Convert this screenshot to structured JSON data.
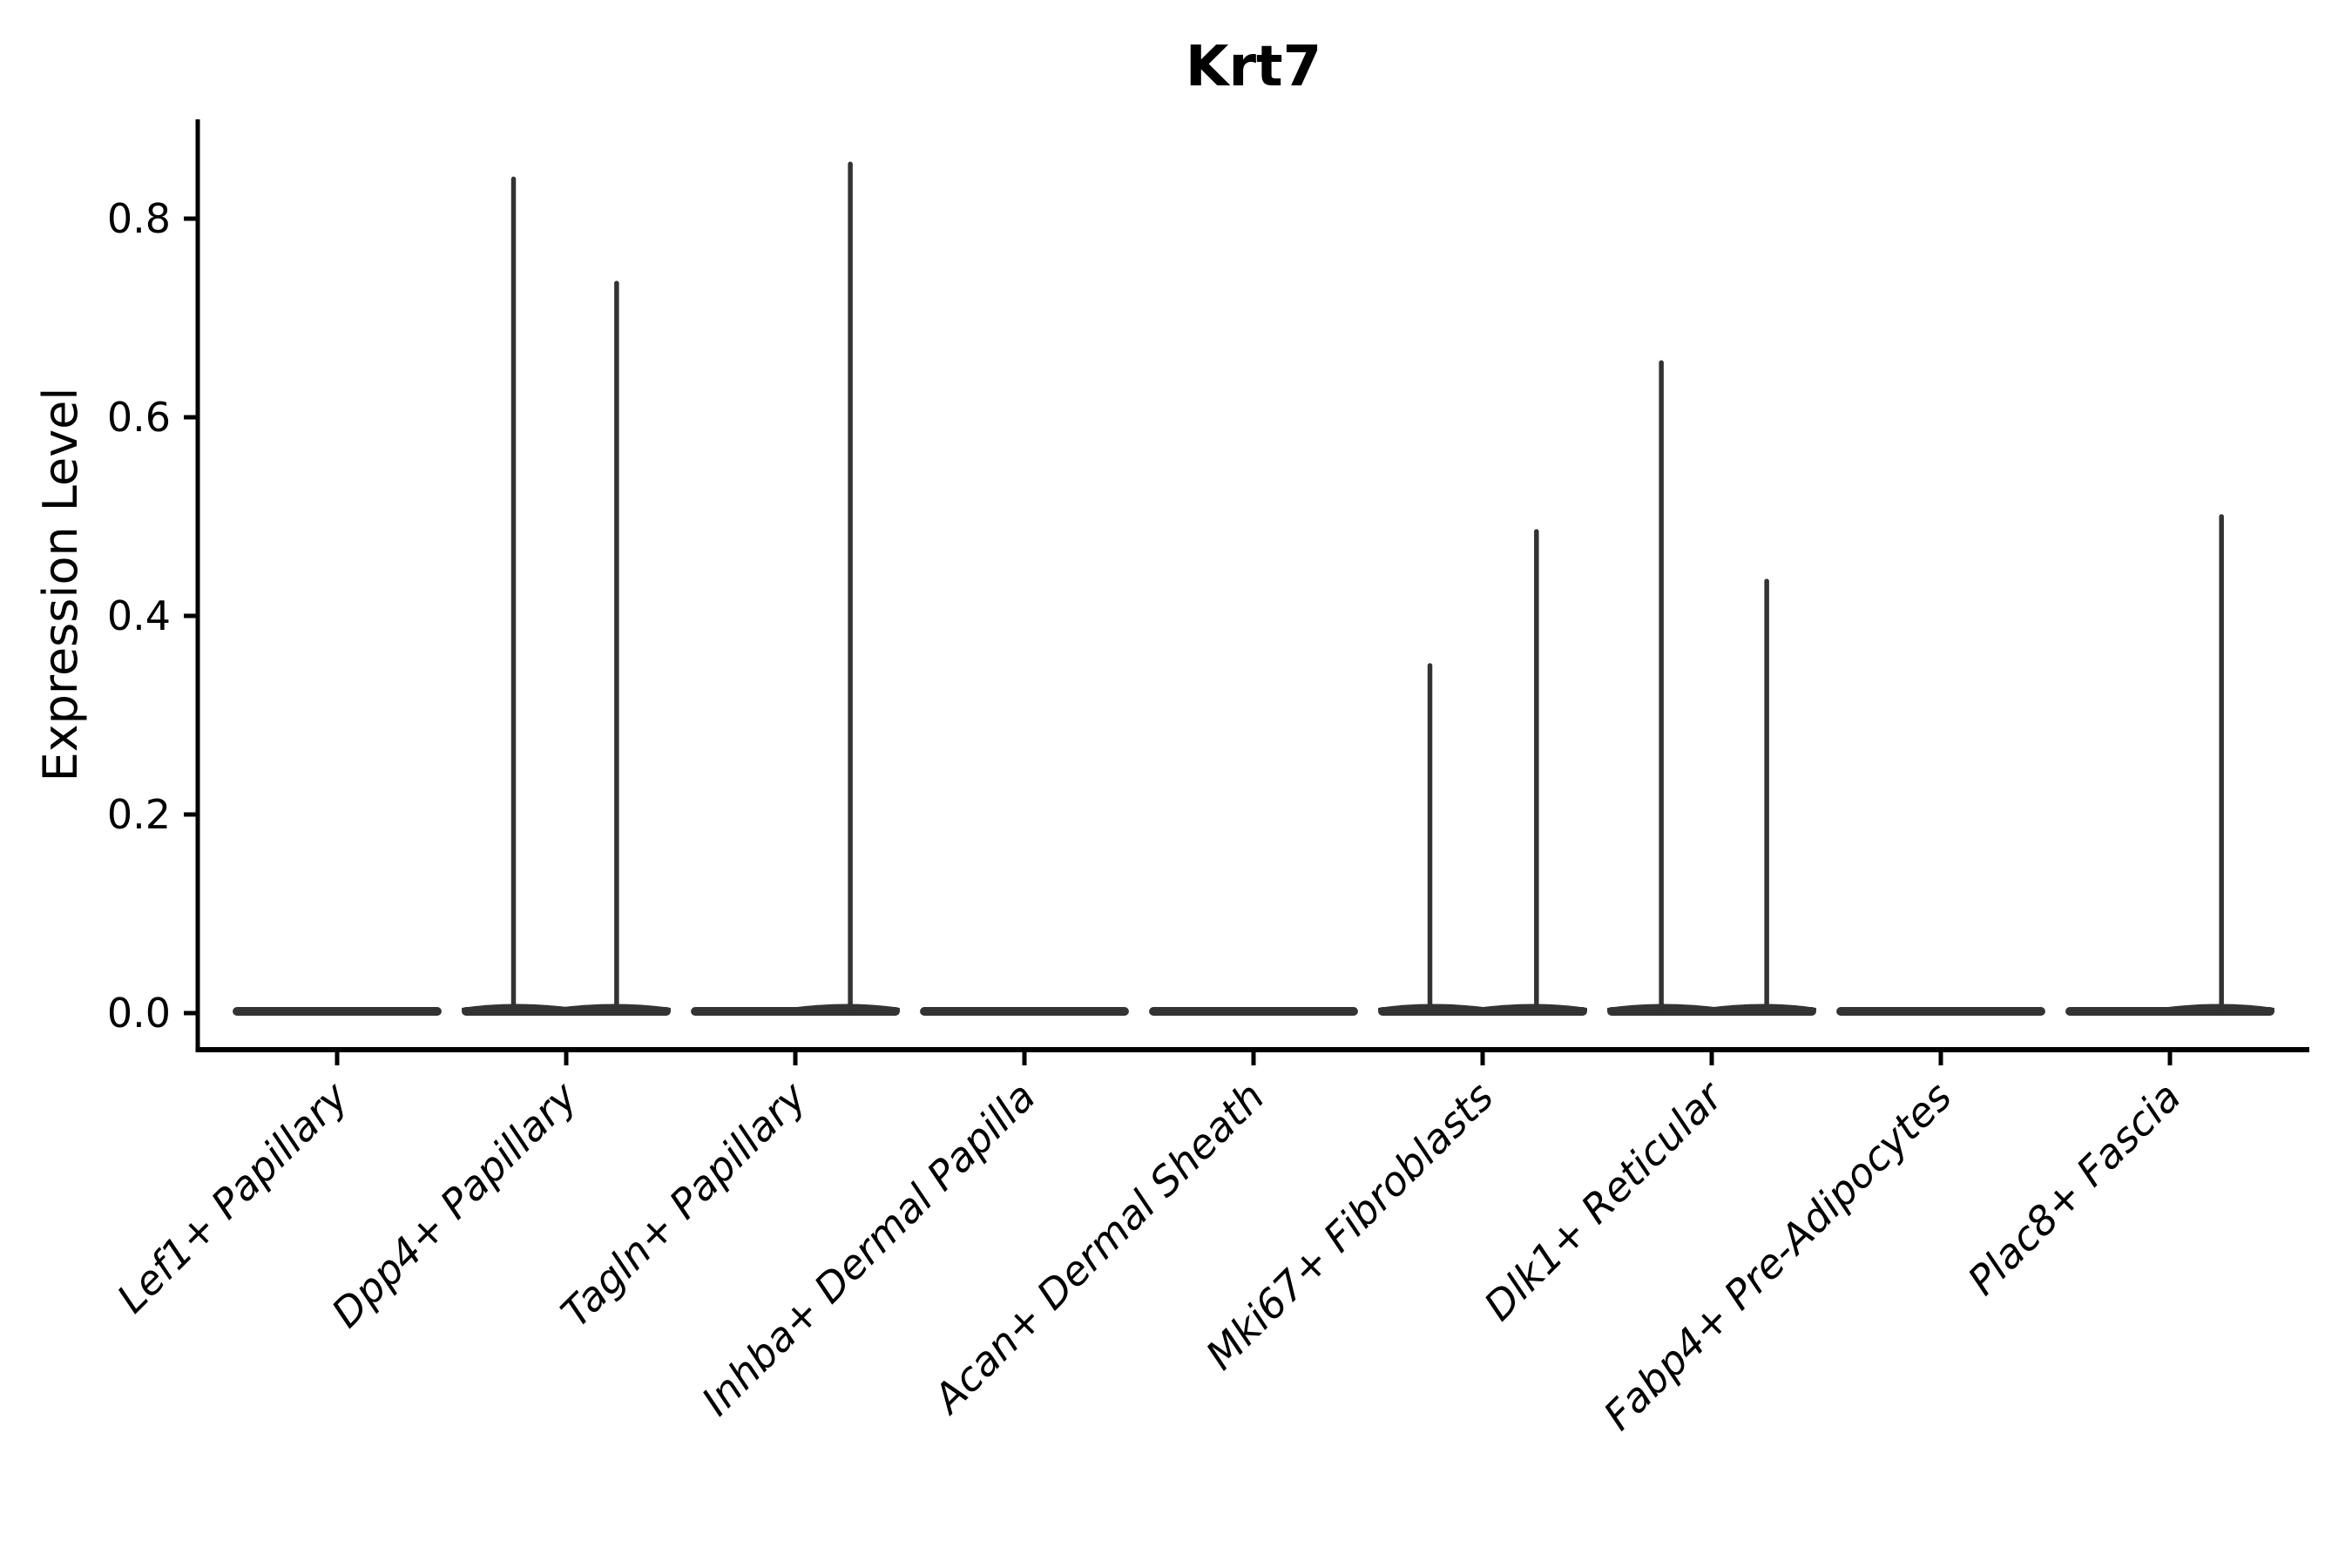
{
  "figure": {
    "title": "Krt7",
    "background_color": "#ffffff",
    "text_color": "#000000"
  },
  "chart_data": {
    "type": "violin",
    "title": "Krt7",
    "xlabel": "",
    "ylabel": "Expression Level",
    "ylim": [
      -0.037,
      0.9
    ],
    "yticks": [
      0.0,
      0.2,
      0.4,
      0.6,
      0.8
    ],
    "ytick_labels": [
      "0.0",
      "0.2",
      "0.4",
      "0.6",
      "0.8"
    ],
    "grid": false,
    "legend": false,
    "violin_color": "#333333",
    "axis_color": "#000000",
    "categories": [
      "Lef1+ Papillary",
      "Dpp4+ Papillary",
      "Tagln+ Papillary",
      "Inhba+ Dermal Papilla",
      "Acan+ Dermal Sheath",
      "Mki67+ Fibroblasts",
      "Dlk1+ Reticular",
      "Fabp4+ Pre-Adipocytes",
      "Plac8+ Fascia"
    ],
    "violins": [
      {
        "category": "Lef1+ Papillary",
        "body_value": 0.0,
        "body_halfwidth_units": 0.456,
        "spikes": []
      },
      {
        "category": "Dpp4+ Papillary",
        "body_value": 0.0,
        "body_halfwidth_units": 0.456,
        "spikes": [
          {
            "pos": -0.23,
            "max": 0.84
          },
          {
            "pos": 0.22,
            "max": 0.735
          }
        ]
      },
      {
        "category": "Tagln+ Papillary",
        "body_value": 0.0,
        "body_halfwidth_units": 0.456,
        "spikes": [
          {
            "pos": 0.24,
            "max": 0.855
          }
        ]
      },
      {
        "category": "Inhba+ Dermal Papilla",
        "body_value": 0.0,
        "body_halfwidth_units": 0.456,
        "spikes": []
      },
      {
        "category": "Acan+ Dermal Sheath",
        "body_value": 0.0,
        "body_halfwidth_units": 0.456,
        "spikes": []
      },
      {
        "category": "Mki67+ Fibroblasts",
        "body_value": 0.0,
        "body_halfwidth_units": 0.456,
        "spikes": [
          {
            "pos": -0.23,
            "max": 0.35
          },
          {
            "pos": 0.235,
            "max": 0.485
          }
        ]
      },
      {
        "category": "Dlk1+ Reticular",
        "body_value": 0.0,
        "body_halfwidth_units": 0.456,
        "spikes": [
          {
            "pos": -0.22,
            "max": 0.655
          },
          {
            "pos": 0.24,
            "max": 0.435
          }
        ]
      },
      {
        "category": "Fabp4+ Pre-Adipocytes",
        "body_value": 0.0,
        "body_halfwidth_units": 0.456,
        "spikes": []
      },
      {
        "category": "Plac8+ Fascia",
        "body_value": 0.0,
        "body_halfwidth_units": 0.456,
        "spikes": [
          {
            "pos": 0.225,
            "max": 0.5
          }
        ]
      }
    ]
  }
}
